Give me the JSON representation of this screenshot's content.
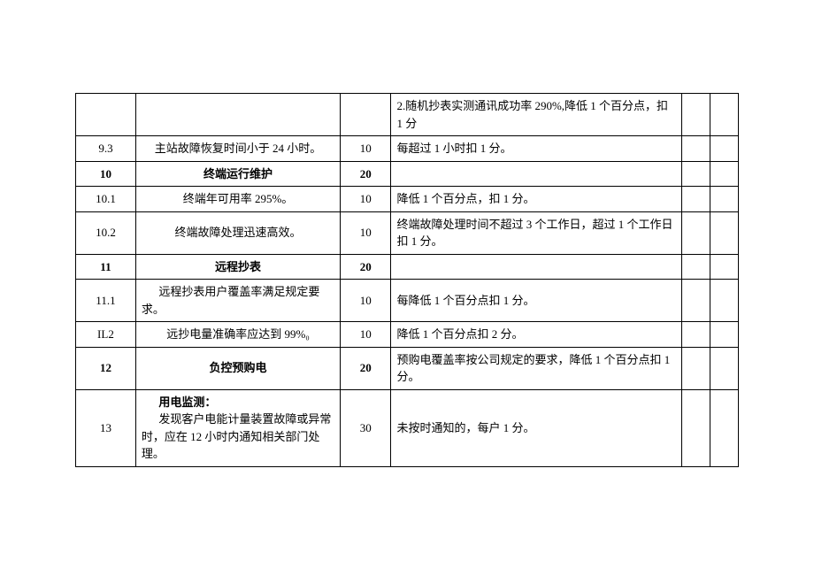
{
  "table": {
    "rows": [
      {
        "num": "",
        "desc": "",
        "desc_bold": false,
        "desc_center": false,
        "score": "",
        "criteria": "2.随机抄表实测通讯成功率 290%,降低 1 个百分点，扣 1 分"
      },
      {
        "num": "9.3",
        "desc": "主站故障恢复时间小于 24 小时。",
        "desc_bold": false,
        "desc_center": true,
        "score": "10",
        "criteria": "每超过 1 小时扣 1 分。"
      },
      {
        "num": "10",
        "desc": "终端运行维护",
        "desc_bold": true,
        "desc_center": true,
        "score": "20",
        "criteria": ""
      },
      {
        "num": "10.1",
        "desc": "终端年可用率 295%。",
        "desc_bold": false,
        "desc_center": true,
        "score": "10",
        "criteria": "降低 1 个百分点，扣 1 分。"
      },
      {
        "num": "10.2",
        "desc": "终端故障处理迅速高效。",
        "desc_bold": false,
        "desc_center": true,
        "score": "10",
        "criteria": "终端故障处理时间不超过 3 个工作日，超过 1 个工作日扣 1 分。"
      },
      {
        "num": "11",
        "desc": "远程抄表",
        "desc_bold": true,
        "desc_center": true,
        "score": "20",
        "criteria": ""
      },
      {
        "num": "11.1",
        "desc": "远程抄表用户覆盖率满足规定要求。",
        "desc_bold": false,
        "desc_center": false,
        "score": "10",
        "criteria": "每降低 1 个百分点扣 1 分。"
      },
      {
        "num": "IL2",
        "desc": "远抄电量准确率应达到 99%₀",
        "desc_bold": false,
        "desc_center": true,
        "score": "10",
        "criteria": "降低 1 个百分点扣 2 分。"
      },
      {
        "num": "12",
        "desc": "负控预购电",
        "desc_bold": true,
        "desc_center": true,
        "score": "20",
        "criteria": "预购电覆盖率按公司规定的要求，降低 1 个百分点扣 1 分。"
      },
      {
        "num": "13",
        "desc": "用电监测：\n发现客户电能计量装置故障或异常时，应在 12 小时内通知相关部门处理。",
        "desc_bold": false,
        "desc_center": false,
        "desc_special": true,
        "score": "30",
        "criteria": "未按时通知的，每户 1 分。"
      }
    ]
  }
}
